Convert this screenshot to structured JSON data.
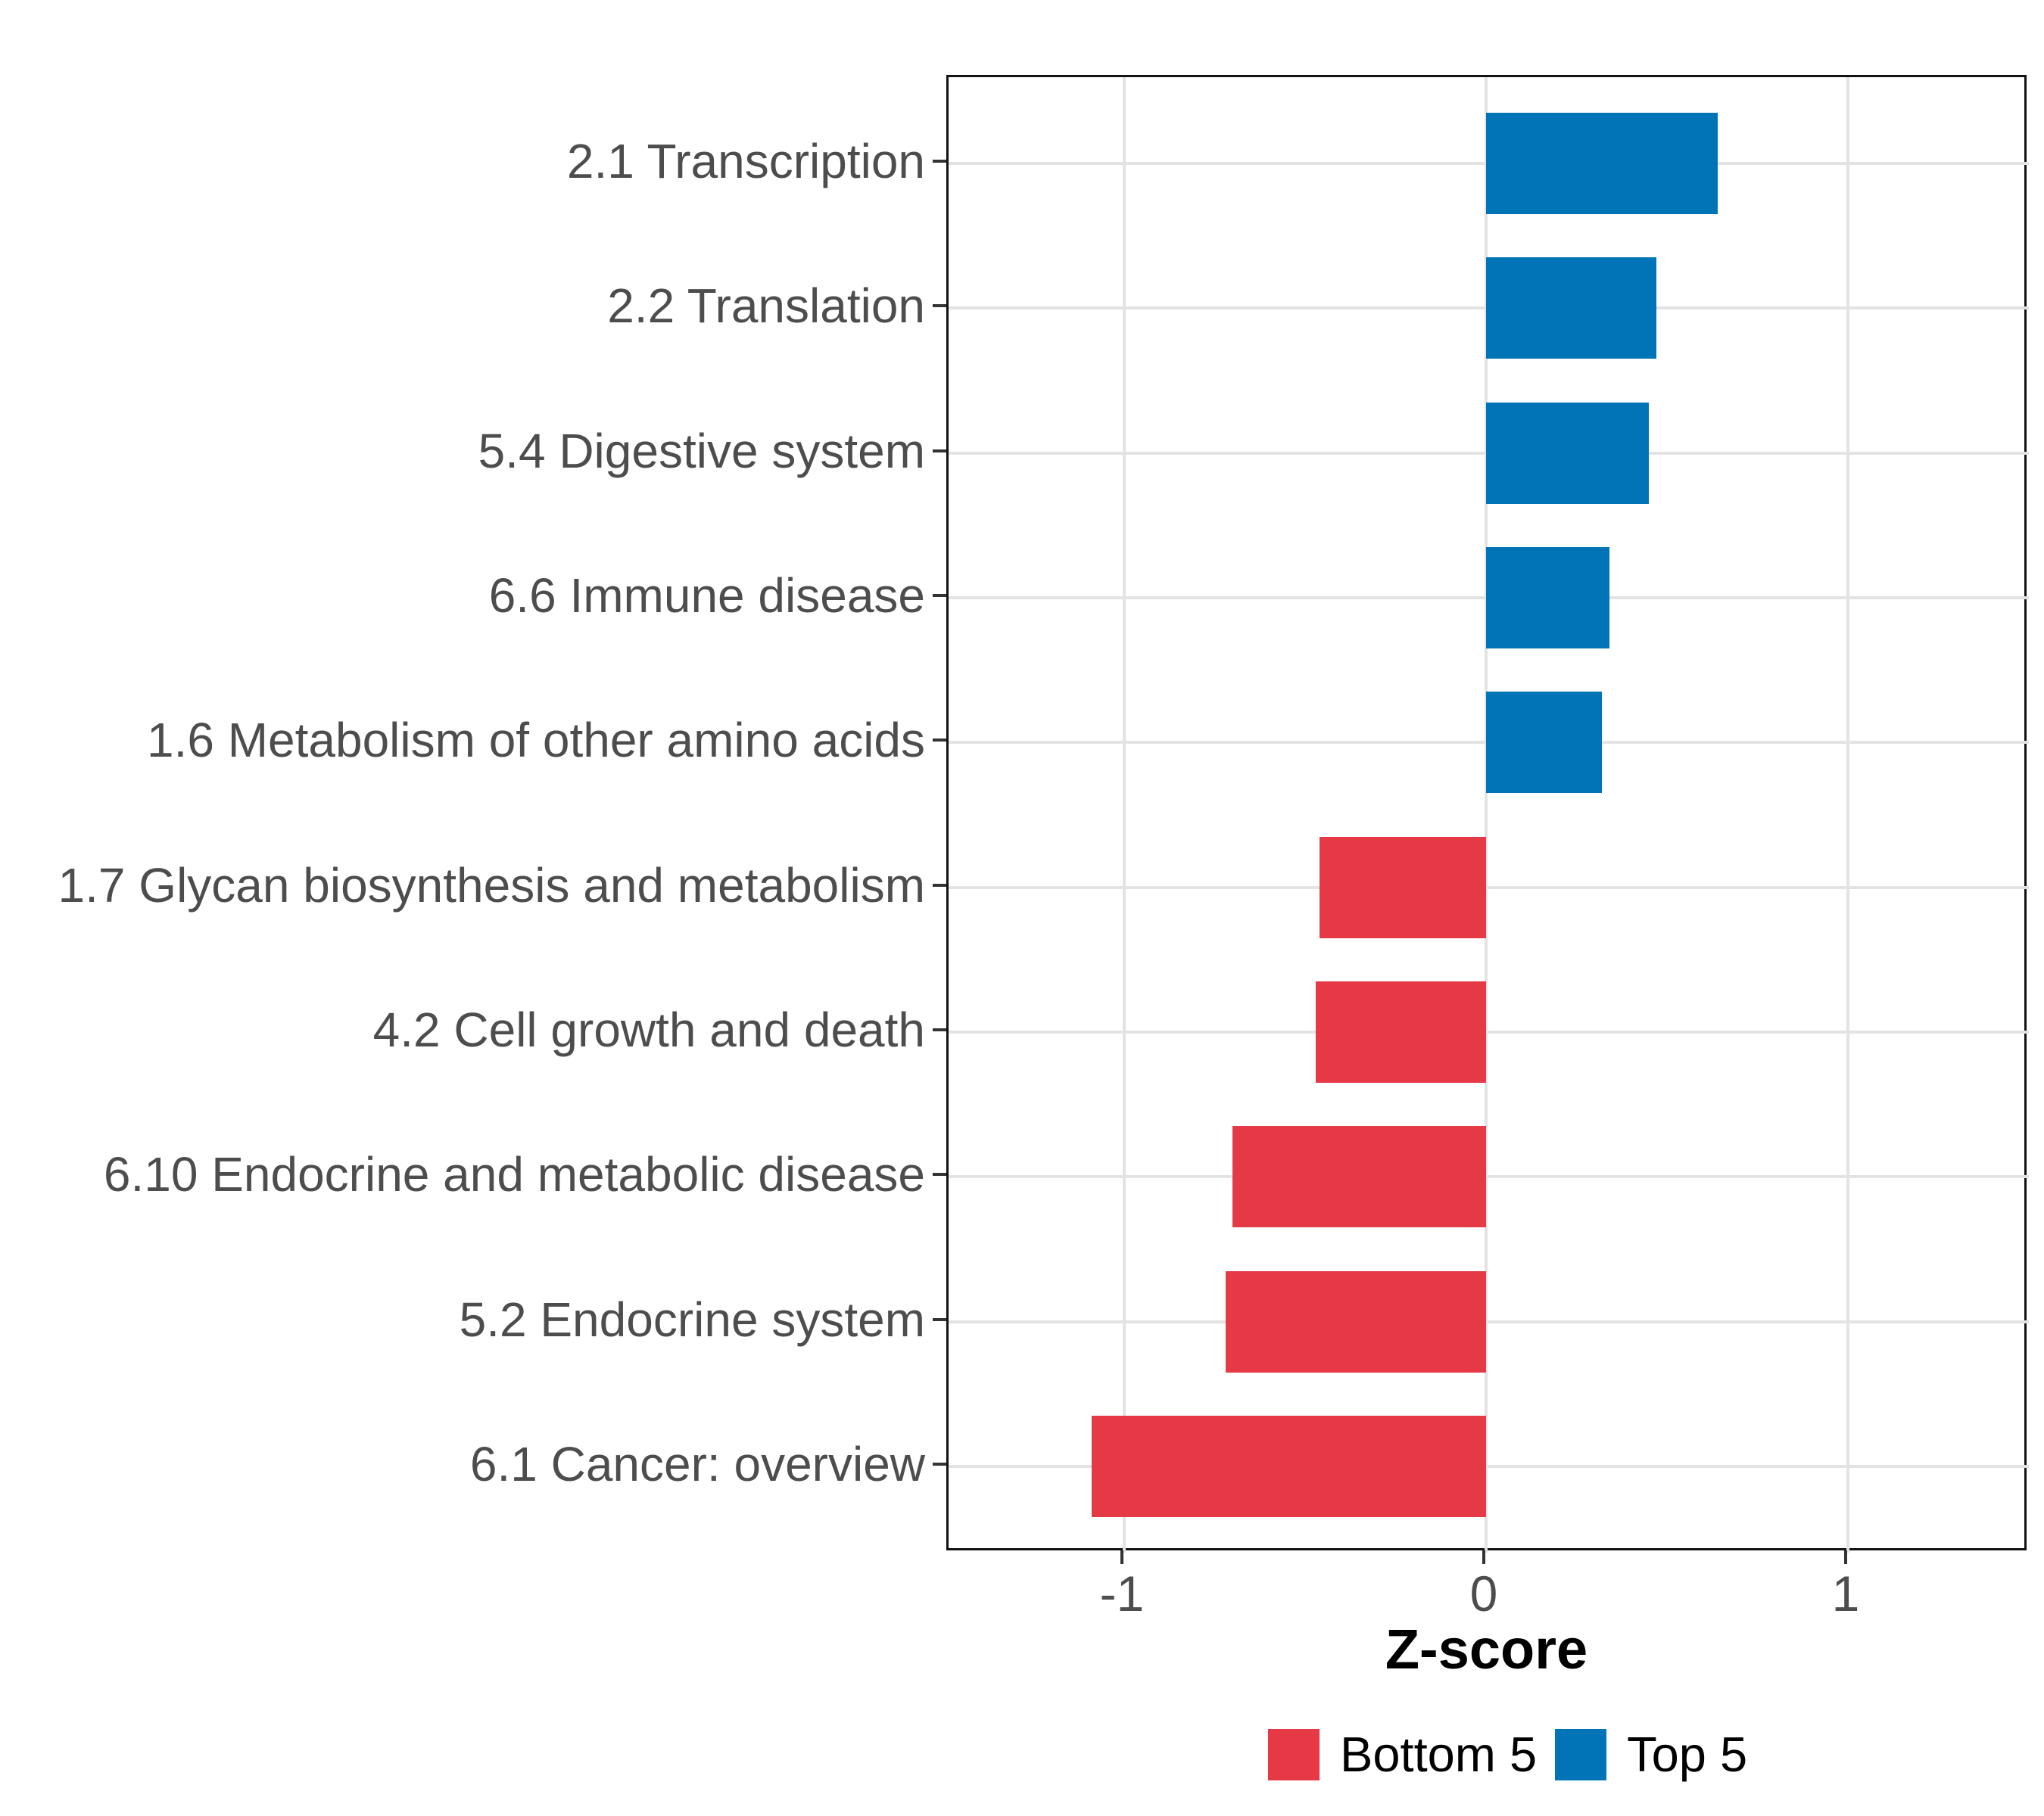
{
  "chart_data": {
    "type": "bar",
    "orientation": "horizontal",
    "title": "",
    "xlabel": "Z-score",
    "ylabel": "",
    "categories": [
      "2.1 Transcription",
      "2.2 Translation",
      "5.4 Digestive system",
      "6.6 Immune disease",
      "1.6 Metabolism of other amino acids",
      "1.7 Glycan biosynthesis and metabolism",
      "4.2 Cell growth and death",
      "6.10 Endocrine and metabolic disease",
      "5.2 Endocrine system",
      "6.1 Cancer: overview"
    ],
    "values": [
      0.64,
      0.47,
      0.45,
      0.34,
      0.32,
      -0.46,
      -0.47,
      -0.7,
      -0.72,
      -1.09
    ],
    "series_membership": [
      "Top 5",
      "Top 5",
      "Top 5",
      "Top 5",
      "Top 5",
      "Bottom 5",
      "Bottom 5",
      "Bottom 5",
      "Bottom 5",
      "Bottom 5"
    ],
    "x_ticks": [
      -1,
      0,
      1
    ],
    "x_tick_labels": [
      "-1",
      "0",
      "1"
    ],
    "xlim": [
      -1.49,
      1.5
    ],
    "grid": true,
    "legend": {
      "position": "bottom",
      "entries": [
        {
          "label": "Bottom 5",
          "color": "#E63946"
        },
        {
          "label": "Top 5",
          "color": "#0074B6"
        }
      ]
    },
    "colors": {
      "positive_bar": "#0074B6",
      "negative_bar": "#E63946",
      "gridline": "#e3e3e3",
      "axis_text": "#4d4d4d",
      "panel_border": "#121212"
    }
  }
}
